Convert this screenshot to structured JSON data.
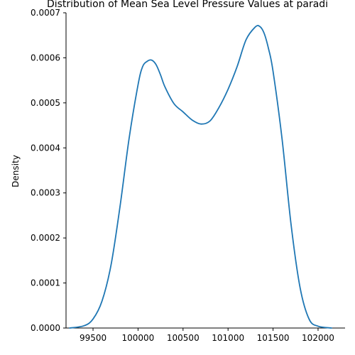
{
  "chart_data": {
    "type": "line",
    "title": "Distribution of Mean Sea Level Pressure Values at paradi",
    "xlabel": "",
    "ylabel": "Density",
    "xlim": [
      99200,
      102300
    ],
    "ylim": [
      0,
      0.0007
    ],
    "x_ticks": [
      99500,
      100000,
      100500,
      101000,
      101500,
      102000
    ],
    "y_ticks": [
      0.0,
      0.0001,
      0.0002,
      0.0003,
      0.0004,
      0.0005,
      0.0006,
      0.0007
    ],
    "x_tick_labels": [
      "99500",
      "100000",
      "100500",
      "101000",
      "101500",
      "102000"
    ],
    "y_tick_labels": [
      "0.0000",
      "0.0001",
      "0.0002",
      "0.0003",
      "0.0004",
      "0.0005",
      "0.0006",
      "0.0007"
    ],
    "grid": false,
    "series": [
      {
        "color": "#1f77b4",
        "x": [
          99240,
          99400,
          99500,
          99600,
          99700,
          99800,
          99900,
          100000,
          100050,
          100100,
          100150,
          100200,
          100250,
          100300,
          100400,
          100500,
          100600,
          100700,
          100800,
          100900,
          101000,
          101100,
          101200,
          101300,
          101350,
          101400,
          101450,
          101500,
          101600,
          101700,
          101800,
          101900,
          102000,
          102150
        ],
        "y": [
          0.0,
          5e-06,
          2e-05,
          6e-05,
          0.00014,
          0.00027,
          0.00042,
          0.00054,
          0.00058,
          0.000592,
          0.000595,
          0.000585,
          0.000562,
          0.000535,
          0.000498,
          0.00048,
          0.000462,
          0.000453,
          0.00046,
          0.00049,
          0.00053,
          0.00058,
          0.00064,
          0.000668,
          0.00067,
          0.000655,
          0.00062,
          0.00057,
          0.00042,
          0.00023,
          9e-05,
          2e-05,
          4e-06,
          0.0
        ]
      }
    ]
  }
}
